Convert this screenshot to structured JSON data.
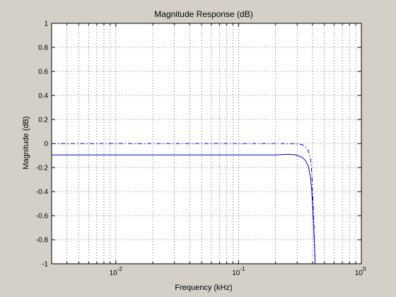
{
  "chart_data": {
    "type": "line",
    "title": "Magnitude Response (dB)",
    "xlabel": "Frequency (kHz)",
    "ylabel": "Magnitude (dB)",
    "xscale": "log",
    "xlim": [
      0.003,
      1
    ],
    "ylim": [
      -1,
      1
    ],
    "grid": true,
    "grid_style": "dotted",
    "legend": "none",
    "yticks": [
      {
        "value": 1,
        "label": "1"
      },
      {
        "value": 0.8,
        "label": "0.8"
      },
      {
        "value": 0.6,
        "label": "0.6"
      },
      {
        "value": 0.4,
        "label": "0.4"
      },
      {
        "value": 0.2,
        "label": "0.2"
      },
      {
        "value": 0,
        "label": "0"
      },
      {
        "value": -0.2,
        "label": "-0.2"
      },
      {
        "value": -0.4,
        "label": "-0.4"
      },
      {
        "value": -0.6,
        "label": "-0.6"
      },
      {
        "value": -0.8,
        "label": "-0.8"
      },
      {
        "value": -1,
        "label": "-1"
      }
    ],
    "xticks": [
      {
        "value": 0.01,
        "base": "10",
        "exp": "-2"
      },
      {
        "value": 0.1,
        "base": "10",
        "exp": "-1"
      },
      {
        "value": 1,
        "base": "10",
        "exp": "0"
      }
    ],
    "series": [
      {
        "color": "#0000cc",
        "dash": "dashdot",
        "x": [
          0.003,
          0.05,
          0.2,
          0.25,
          0.3,
          0.33,
          0.35,
          0.37,
          0.385,
          0.395,
          0.405,
          0.415,
          0.42
        ],
        "y": [
          0,
          0,
          0,
          0,
          -0.002,
          -0.01,
          -0.025,
          -0.06,
          -0.12,
          -0.25,
          -0.5,
          -0.8,
          -1
        ]
      },
      {
        "color": "#0000cc",
        "dash": "solid",
        "x": [
          0.003,
          0.05,
          0.2,
          0.25,
          0.28,
          0.3,
          0.33,
          0.35,
          0.37,
          0.385,
          0.395,
          0.405,
          0.415,
          0.42
        ],
        "y": [
          -0.095,
          -0.095,
          -0.095,
          -0.09,
          -0.092,
          -0.098,
          -0.115,
          -0.14,
          -0.19,
          -0.28,
          -0.4,
          -0.6,
          -0.85,
          -1
        ]
      }
    ],
    "colors": {
      "figure_bg": "#d4d0c8",
      "axes_bg": "#ffffff",
      "grid": "#000000",
      "axis": "#000000"
    }
  }
}
